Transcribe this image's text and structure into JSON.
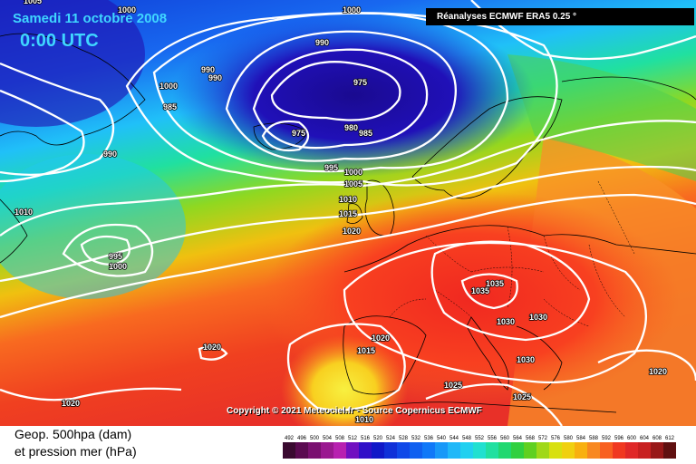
{
  "header": {
    "date": "Samedi 11 octobre 2008",
    "time": "0:00 UTC",
    "source": "Réanalyses ECMWF ERA5 0.25 °"
  },
  "copyright": "Copyright © 2021 Meteociel.fr - Source Copernicus ECMWF",
  "legend": {
    "title_line1": "Geop. 500hpa (dam)",
    "title_line2": "et pression mer (hPa)",
    "scale_values": [
      "492",
      "496",
      "500",
      "504",
      "508",
      "512",
      "516",
      "520",
      "524",
      "528",
      "532",
      "536",
      "540",
      "544",
      "548",
      "552",
      "556",
      "560",
      "564",
      "568",
      "572",
      "576",
      "580",
      "584",
      "588",
      "592",
      "596",
      "600",
      "604",
      "608",
      "612"
    ],
    "scale_colors": [
      "#3a0a30",
      "#5a0a50",
      "#7a1070",
      "#9a1890",
      "#b820b0",
      "#7010c0",
      "#3010c8",
      "#1018c8",
      "#1030d8",
      "#1048e8",
      "#1060f0",
      "#1078f8",
      "#1898f8",
      "#20b8f8",
      "#20d0f0",
      "#20e0d0",
      "#20e0a0",
      "#20d870",
      "#30d040",
      "#60d020",
      "#a0d818",
      "#d8e010",
      "#f0d010",
      "#f8b010",
      "#f88820",
      "#f86020",
      "#f03820",
      "#e02828",
      "#c82020",
      "#981818",
      "#601010"
    ]
  },
  "isobar_labels": [
    {
      "text": "1000"
    },
    {
      "text": "1005"
    },
    {
      "text": "1000"
    },
    {
      "text": "990"
    },
    {
      "text": "990"
    },
    {
      "text": "990"
    },
    {
      "text": "1000"
    },
    {
      "text": "985"
    },
    {
      "text": "975"
    },
    {
      "text": "975"
    },
    {
      "text": "980"
    },
    {
      "text": "985"
    },
    {
      "text": "990"
    },
    {
      "text": "995"
    },
    {
      "text": "1000"
    },
    {
      "text": "1005"
    },
    {
      "text": "1010"
    },
    {
      "text": "1015"
    },
    {
      "text": "1020"
    },
    {
      "text": "1010"
    },
    {
      "text": "995"
    },
    {
      "text": "1000"
    },
    {
      "text": "1035"
    },
    {
      "text": "1035"
    },
    {
      "text": "1030"
    },
    {
      "text": "1030"
    },
    {
      "text": "1020"
    },
    {
      "text": "1015"
    },
    {
      "text": "1020"
    },
    {
      "text": "1030"
    },
    {
      "text": "1020"
    },
    {
      "text": "1025"
    },
    {
      "text": "1025"
    },
    {
      "text": "1020"
    },
    {
      "text": "1010"
    }
  ]
}
